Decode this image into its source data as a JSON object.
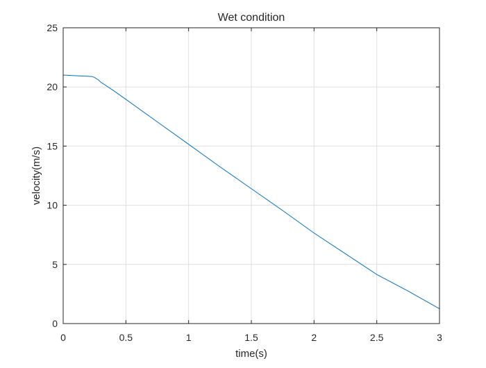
{
  "chart_data": {
    "type": "line",
    "title": "Wet condition",
    "xlabel": "time(s)",
    "ylabel": "velocity(m/s)",
    "xlim": [
      0,
      3
    ],
    "ylim": [
      0,
      25
    ],
    "grid": true,
    "x_ticks": [
      0,
      0.5,
      1,
      1.5,
      2,
      2.5,
      3
    ],
    "x_tick_labels": [
      "0",
      "0.5",
      "1",
      "1.5",
      "2",
      "2.5",
      "3"
    ],
    "y_ticks": [
      0,
      5,
      10,
      15,
      20,
      25
    ],
    "y_tick_labels": [
      "0",
      "5",
      "10",
      "15",
      "20",
      "25"
    ],
    "line_color": "#0072BD",
    "series": [
      {
        "x": [
          0,
          0.05,
          0.1,
          0.15,
          0.2,
          0.23,
          0.25,
          0.28,
          0.3,
          0.35,
          0.4,
          0.5,
          0.75,
          1.0,
          1.25,
          1.5,
          1.75,
          2.0,
          2.25,
          2.5,
          2.75,
          3.0
        ],
        "y": [
          21.0,
          20.98,
          20.95,
          20.92,
          20.9,
          20.88,
          20.8,
          20.6,
          20.4,
          20.05,
          19.7,
          18.95,
          17.05,
          15.15,
          13.25,
          11.4,
          9.55,
          7.65,
          5.9,
          4.15,
          2.75,
          1.25
        ]
      }
    ]
  }
}
